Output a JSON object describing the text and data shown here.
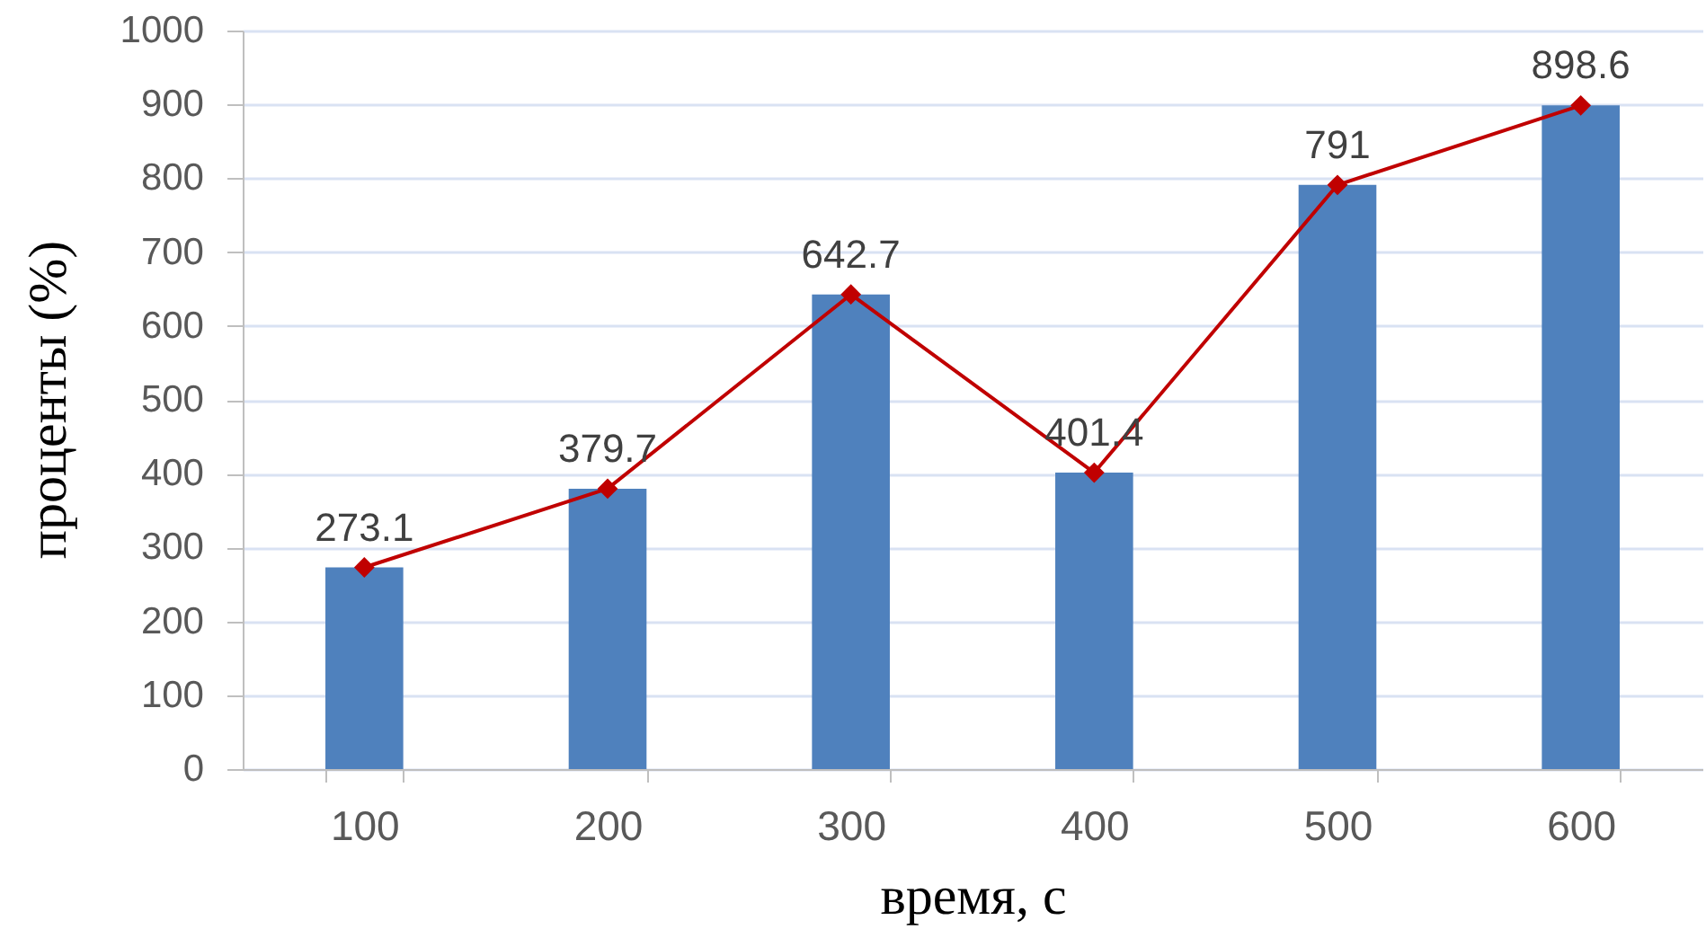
{
  "chart_data": {
    "type": "bar",
    "xlabel": "время, с",
    "ylabel": "проценты (%)",
    "categories": [
      "100",
      "200",
      "300",
      "400",
      "500",
      "600"
    ],
    "series": [
      {
        "type": "bar",
        "color": "#4f81bd",
        "values": [
          273.1,
          379.7,
          642.7,
          401.4,
          791,
          898.6
        ]
      },
      {
        "type": "line",
        "color": "#c00000",
        "values": [
          273.1,
          379.7,
          642.7,
          401.4,
          791,
          898.6
        ],
        "value_labels": [
          "273.1",
          "379.7",
          "642.7",
          "401.4",
          "791",
          "898.6"
        ]
      }
    ],
    "ylim": [
      0,
      1000
    ],
    "yticks": [
      0,
      100,
      200,
      300,
      400,
      500,
      600,
      700,
      800,
      900,
      1000
    ],
    "grid": "y",
    "marker": "diamond",
    "line_style": "solid"
  }
}
